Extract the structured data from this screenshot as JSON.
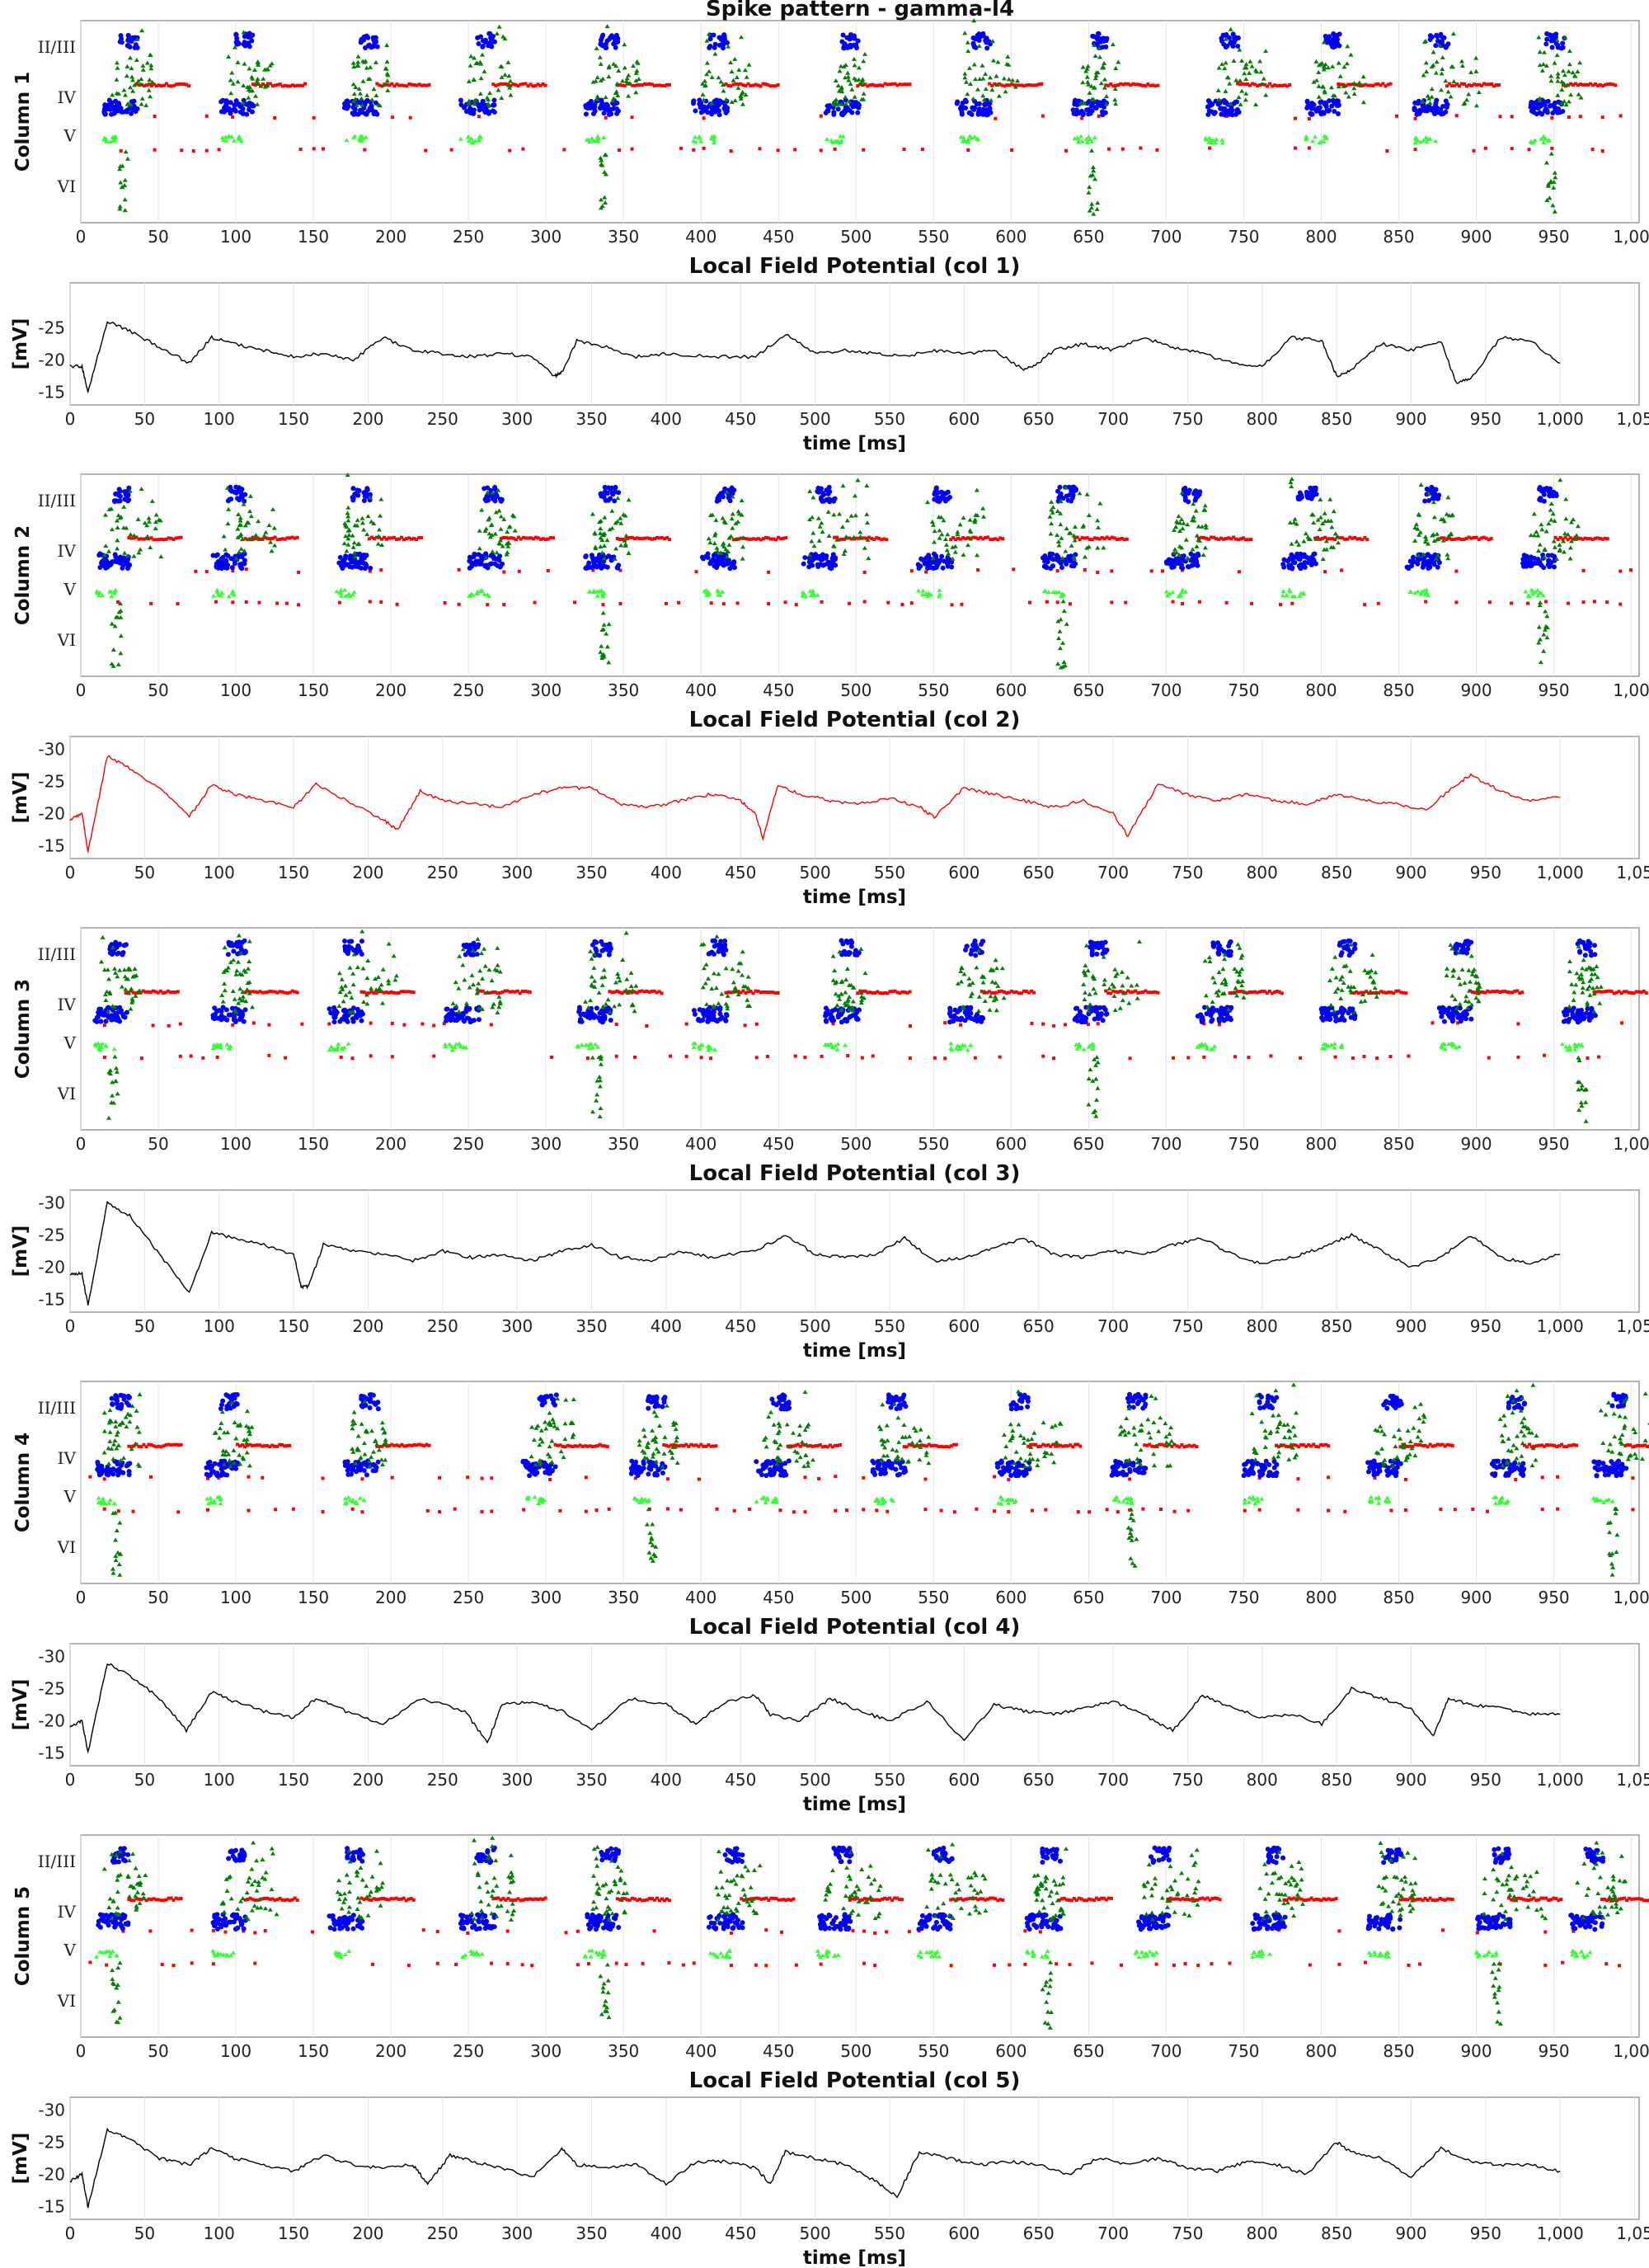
{
  "chart_data": [
    {
      "type": "scatter",
      "title": "Spike pattern - gamma-l4",
      "ylabel": "Column 1",
      "xlabel": "",
      "xlim": [
        0,
        1000
      ],
      "x_ticks": [
        "0",
        "50",
        "100",
        "150",
        "200",
        "250",
        "300",
        "350",
        "400",
        "450",
        "500",
        "550",
        "600",
        "650",
        "700",
        "750",
        "800",
        "850",
        "900",
        "950",
        "1,00"
      ],
      "y_ticks": [
        "II/III",
        "IV",
        "V",
        "VI"
      ],
      "grid": true,
      "events": [
        15,
        90,
        170,
        245,
        325,
        395,
        480,
        565,
        640,
        725,
        790,
        860,
        935
      ],
      "colors": {
        "excitatory_l23": "#0000ff",
        "interneuron": "#008000",
        "inhibitory": "#ff0000",
        "l5": "#33ff33"
      }
    },
    {
      "type": "line",
      "title": "Local Field Potential (col 1)",
      "ylabel": "[mV]",
      "xlabel": "time [ms]",
      "xlim": [
        0,
        1050
      ],
      "ylim": [
        -13,
        -32
      ],
      "x_ticks": [
        "0",
        "50",
        "100",
        "150",
        "200",
        "250",
        "300",
        "350",
        "400",
        "450",
        "500",
        "550",
        "600",
        "650",
        "700",
        "750",
        "800",
        "850",
        "900",
        "950",
        "1,000",
        "1,05"
      ],
      "y_ticks": [
        "-25",
        "-20",
        "-15"
      ],
      "color": "#000000",
      "x": [
        0,
        8,
        12,
        25,
        40,
        60,
        80,
        95,
        110,
        130,
        150,
        170,
        190,
        210,
        230,
        250,
        270,
        290,
        310,
        325,
        330,
        340,
        360,
        380,
        400,
        430,
        460,
        480,
        500,
        520,
        540,
        560,
        580,
        600,
        620,
        640,
        650,
        660,
        680,
        700,
        720,
        740,
        760,
        780,
        800,
        820,
        840,
        850,
        860,
        880,
        900,
        920,
        930,
        940,
        960,
        980,
        1000
      ],
      "y": [
        -19,
        -19,
        -15,
        -26,
        -24.5,
        -22,
        -19.5,
        -23.5,
        -22.5,
        -21.5,
        -20.5,
        -21,
        -20,
        -23.5,
        -21.5,
        -21,
        -20.5,
        -21,
        -20.5,
        -17.5,
        -18,
        -23,
        -22,
        -20.5,
        -21,
        -20.5,
        -20.5,
        -24,
        -21,
        -21.5,
        -21,
        -20.5,
        -21.5,
        -21,
        -21.5,
        -18.5,
        -19.5,
        -21.5,
        -22.5,
        -21.5,
        -23.5,
        -22,
        -21,
        -19.5,
        -19,
        -23.5,
        -23,
        -17.5,
        -18.5,
        -22.5,
        -21.5,
        -23,
        -16.5,
        -17,
        -23.5,
        -23,
        -19.5
      ]
    },
    {
      "type": "scatter",
      "title": "",
      "ylabel": "Column 2",
      "xlabel": "",
      "xlim": [
        0,
        1000
      ],
      "x_ticks": [
        "0",
        "50",
        "100",
        "150",
        "200",
        "250",
        "300",
        "350",
        "400",
        "450",
        "500",
        "550",
        "600",
        "650",
        "700",
        "750",
        "800",
        "850",
        "900",
        "950",
        "1,00"
      ],
      "y_ticks": [
        "II/III",
        "IV",
        "V",
        "VI"
      ],
      "grid": true,
      "events": [
        10,
        85,
        165,
        250,
        325,
        400,
        465,
        540,
        620,
        700,
        775,
        855,
        930
      ]
    },
    {
      "type": "line",
      "title": "Local Field Potential (col 2)",
      "ylabel": "[mV]",
      "xlabel": "time [ms]",
      "xlim": [
        0,
        1050
      ],
      "ylim": [
        -13,
        -32
      ],
      "x_ticks": [
        "0",
        "50",
        "100",
        "150",
        "200",
        "250",
        "300",
        "350",
        "400",
        "450",
        "500",
        "550",
        "600",
        "650",
        "700",
        "750",
        "800",
        "850",
        "900",
        "950",
        "1,000",
        "1,05"
      ],
      "y_ticks": [
        "-30",
        "-25",
        "-20",
        "-15"
      ],
      "color": "#ff0000",
      "x": [
        0,
        8,
        12,
        25,
        40,
        60,
        80,
        95,
        110,
        130,
        150,
        165,
        190,
        210,
        220,
        235,
        250,
        270,
        290,
        310,
        330,
        350,
        370,
        390,
        410,
        430,
        450,
        460,
        465,
        475,
        490,
        510,
        530,
        550,
        570,
        580,
        600,
        620,
        640,
        660,
        680,
        700,
        710,
        730,
        750,
        770,
        790,
        810,
        830,
        850,
        870,
        890,
        910,
        930,
        940,
        960,
        980,
        1000
      ],
      "y": [
        -19,
        -20,
        -14,
        -29,
        -27,
        -24,
        -19.5,
        -24.5,
        -23,
        -22,
        -21,
        -24.5,
        -21.5,
        -19,
        -17.5,
        -23.5,
        -22,
        -21.5,
        -21,
        -23,
        -24,
        -24,
        -21.5,
        -21,
        -22,
        -23,
        -22,
        -20,
        -16,
        -24.5,
        -23,
        -22,
        -21.5,
        -22.5,
        -21,
        -19.5,
        -24,
        -23,
        -22,
        -21,
        -22,
        -20,
        -16.5,
        -24.5,
        -23,
        -22,
        -23,
        -22,
        -21.5,
        -23,
        -22,
        -21.5,
        -20.5,
        -24.5,
        -26,
        -23.5,
        -22,
        -22.5
      ]
    },
    {
      "type": "scatter",
      "title": "",
      "ylabel": "Column 3",
      "xlabel": "",
      "xlim": [
        0,
        1000
      ],
      "x_ticks": [
        "0",
        "50",
        "100",
        "150",
        "200",
        "250",
        "300",
        "350",
        "400",
        "450",
        "500",
        "550",
        "600",
        "650",
        "700",
        "750",
        "800",
        "850",
        "900",
        "950",
        "1,00"
      ],
      "y_ticks": [
        "II/III",
        "IV",
        "V",
        "VI"
      ],
      "grid": true,
      "events": [
        8,
        85,
        160,
        235,
        320,
        395,
        480,
        560,
        640,
        720,
        800,
        875,
        955
      ]
    },
    {
      "type": "line",
      "title": "Local Field Potential (col 3)",
      "ylabel": "[mV]",
      "xlabel": "time [ms]",
      "xlim": [
        0,
        1050
      ],
      "ylim": [
        -13,
        -32
      ],
      "x_ticks": [
        "0",
        "50",
        "100",
        "150",
        "200",
        "250",
        "300",
        "350",
        "400",
        "450",
        "500",
        "550",
        "600",
        "650",
        "700",
        "750",
        "800",
        "850",
        "900",
        "950",
        "1,000",
        "1,05"
      ],
      "y_ticks": [
        "-30",
        "-25",
        "-20",
        "-15"
      ],
      "color": "#000000",
      "x": [
        0,
        8,
        12,
        25,
        40,
        60,
        80,
        95,
        110,
        130,
        150,
        155,
        160,
        170,
        190,
        210,
        230,
        250,
        270,
        290,
        310,
        330,
        350,
        370,
        390,
        410,
        430,
        460,
        480,
        500,
        520,
        540,
        560,
        580,
        600,
        620,
        640,
        660,
        680,
        700,
        720,
        740,
        760,
        780,
        800,
        820,
        840,
        860,
        880,
        900,
        920,
        940,
        960,
        980,
        1000
      ],
      "y": [
        -19,
        -19,
        -14,
        -30,
        -28,
        -22,
        -16,
        -25.5,
        -24.5,
        -23.5,
        -22,
        -17,
        -17,
        -23.5,
        -22.5,
        -22,
        -21,
        -22.5,
        -21.5,
        -22,
        -21,
        -22.5,
        -23.5,
        -21.5,
        -21,
        -22.5,
        -21.5,
        -22.5,
        -25,
        -22,
        -21.5,
        -22,
        -24.5,
        -21,
        -21.5,
        -23,
        -24.5,
        -22,
        -21.5,
        -22.5,
        -22,
        -23.5,
        -24.5,
        -22,
        -20.5,
        -21.5,
        -23,
        -25,
        -22.5,
        -20,
        -21.5,
        -25,
        -21.5,
        -20.5,
        -22
      ]
    },
    {
      "type": "scatter",
      "title": "",
      "ylabel": "Column 4",
      "xlabel": "",
      "xlim": [
        0,
        1000
      ],
      "x_ticks": [
        "0",
        "50",
        "100",
        "150",
        "200",
        "250",
        "300",
        "350",
        "400",
        "450",
        "500",
        "550",
        "600",
        "650",
        "700",
        "750",
        "800",
        "850",
        "900",
        "950",
        "1,00"
      ],
      "y_ticks": [
        "II/III",
        "IV",
        "V",
        "VI"
      ],
      "grid": true,
      "events": [
        10,
        80,
        170,
        285,
        355,
        435,
        510,
        590,
        665,
        750,
        830,
        910,
        975
      ]
    },
    {
      "type": "line",
      "title": "Local Field Potential (col 4)",
      "ylabel": "[mV]",
      "xlabel": "time [ms]",
      "xlim": [
        0,
        1050
      ],
      "ylim": [
        -13,
        -32
      ],
      "x_ticks": [
        "0",
        "50",
        "100",
        "150",
        "200",
        "250",
        "300",
        "350",
        "400",
        "450",
        "500",
        "550",
        "600",
        "650",
        "700",
        "750",
        "800",
        "850",
        "900",
        "950",
        "1,000",
        "1,05"
      ],
      "y_ticks": [
        "-30",
        "-25",
        "-20",
        "-15"
      ],
      "color": "#000000",
      "x": [
        0,
        8,
        12,
        25,
        40,
        60,
        78,
        95,
        110,
        130,
        150,
        165,
        185,
        210,
        235,
        265,
        280,
        290,
        310,
        330,
        350,
        375,
        400,
        420,
        440,
        460,
        470,
        490,
        510,
        530,
        550,
        575,
        600,
        620,
        640,
        660,
        680,
        700,
        720,
        740,
        760,
        780,
        800,
        820,
        840,
        860,
        880,
        900,
        915,
        925,
        940,
        960,
        980,
        1000
      ],
      "y": [
        -19,
        -20,
        -15,
        -29,
        -27,
        -23.5,
        -18.5,
        -24.5,
        -23,
        -21.5,
        -20.5,
        -23.5,
        -21.5,
        -19.5,
        -23.5,
        -21.5,
        -16.5,
        -22.5,
        -23,
        -21.5,
        -18.5,
        -23.5,
        -22.5,
        -19.5,
        -23,
        -24,
        -21,
        -20,
        -23.5,
        -21.5,
        -20,
        -23,
        -17,
        -22.5,
        -21.5,
        -21,
        -22,
        -23,
        -21,
        -18.5,
        -24,
        -22,
        -20.5,
        -21,
        -19.5,
        -25,
        -23.5,
        -22,
        -17.5,
        -23.5,
        -22.5,
        -22,
        -21,
        -21
      ]
    },
    {
      "type": "scatter",
      "title": "",
      "ylabel": "Column 5",
      "xlabel": "",
      "xlim": [
        0,
        1000
      ],
      "x_ticks": [
        "0",
        "50",
        "100",
        "150",
        "200",
        "250",
        "300",
        "350",
        "400",
        "450",
        "500",
        "550",
        "600",
        "650",
        "700",
        "750",
        "800",
        "850",
        "900",
        "950",
        "1,00"
      ],
      "y_ticks": [
        "II/III",
        "IV",
        "V",
        "VI"
      ],
      "grid": true,
      "events": [
        10,
        85,
        160,
        245,
        325,
        405,
        475,
        540,
        610,
        680,
        755,
        830,
        900,
        960
      ]
    },
    {
      "type": "line",
      "title": "Local Field Potential (col 5)",
      "ylabel": "[mV]",
      "xlabel": "time [ms]",
      "xlim": [
        0,
        1050
      ],
      "ylim": [
        -13,
        -32
      ],
      "x_ticks": [
        "0",
        "50",
        "100",
        "150",
        "200",
        "250",
        "300",
        "350",
        "400",
        "450",
        "500",
        "550",
        "600",
        "650",
        "700",
        "750",
        "800",
        "850",
        "900",
        "950",
        "1,000",
        "1,05"
      ],
      "y_ticks": [
        "-30",
        "-25",
        "-20",
        "-15"
      ],
      "color": "#000000",
      "x": [
        0,
        8,
        12,
        25,
        40,
        60,
        80,
        95,
        110,
        130,
        150,
        170,
        190,
        210,
        230,
        240,
        255,
        270,
        290,
        310,
        330,
        340,
        360,
        380,
        400,
        420,
        440,
        460,
        470,
        480,
        500,
        520,
        540,
        555,
        570,
        590,
        610,
        630,
        650,
        670,
        690,
        710,
        730,
        750,
        770,
        790,
        810,
        830,
        850,
        860,
        880,
        900,
        920,
        940,
        960,
        980,
        1000
      ],
      "y": [
        -19,
        -20,
        -15,
        -27,
        -25.5,
        -22.5,
        -21.5,
        -24,
        -22.5,
        -21.5,
        -20.5,
        -23,
        -21.5,
        -21,
        -21.5,
        -18.5,
        -23,
        -22,
        -21,
        -19.5,
        -24,
        -21.5,
        -21,
        -21.5,
        -18.5,
        -22,
        -22,
        -21,
        -18.5,
        -23.5,
        -22.5,
        -21.5,
        -19,
        -16.5,
        -23.5,
        -22.5,
        -21.5,
        -22,
        -21.5,
        -20,
        -22.5,
        -21.5,
        -22.5,
        -21,
        -20.5,
        -22,
        -21.5,
        -20,
        -25,
        -23.5,
        -22.5,
        -19.5,
        -24,
        -22,
        -21.5,
        -21.5,
        -20.5
      ]
    }
  ]
}
